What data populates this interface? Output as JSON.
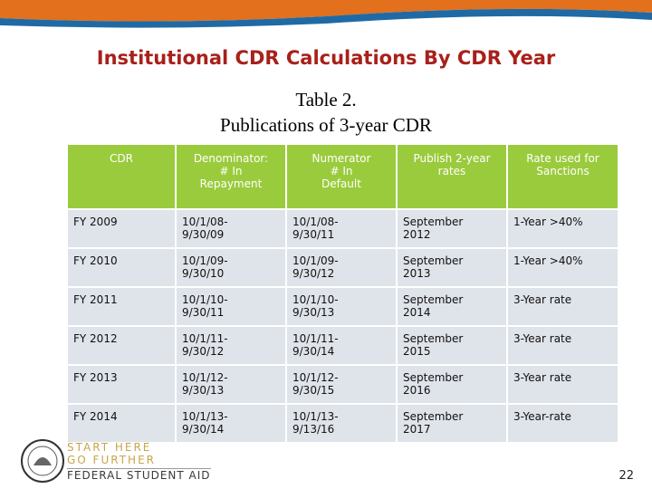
{
  "header": {
    "title": "Institutional CDR Calculations By CDR Year"
  },
  "table": {
    "caption": [
      "Table 2.",
      "Publications of 3-year CDR"
    ],
    "columns": [
      [
        "CDR"
      ],
      [
        "Denominator:",
        "# In",
        "Repayment"
      ],
      [
        "Numerator",
        "# In",
        "Default"
      ],
      [
        "Publish 2-year",
        "rates"
      ],
      [
        "Rate used for",
        "Sanctions"
      ]
    ],
    "rows": [
      [
        [
          "FY 2009"
        ],
        [
          "10/1/08-",
          "9/30/09"
        ],
        [
          "10/1/08-",
          "9/30/11"
        ],
        [
          "September",
          "2012"
        ],
        [
          "1-Year >40%"
        ]
      ],
      [
        [
          "FY 2010"
        ],
        [
          "10/1/09-",
          "9/30/10"
        ],
        [
          "10/1/09-",
          "9/30/12"
        ],
        [
          "September",
          "2013"
        ],
        [
          "1-Year >40%"
        ]
      ],
      [
        [
          "FY 2011"
        ],
        [
          "10/1/10-",
          "9/30/11"
        ],
        [
          "10/1/10-",
          "9/30/13"
        ],
        [
          "September",
          "2014"
        ],
        [
          "3-Year rate"
        ]
      ],
      [
        [
          "FY 2012"
        ],
        [
          "10/1/11-",
          "9/30/12"
        ],
        [
          "10/1/11-",
          "9/30/14"
        ],
        [
          "September",
          "2015"
        ],
        [
          "3-Year rate"
        ]
      ],
      [
        [
          "FY 2013"
        ],
        [
          "10/1/12-",
          "9/30/13"
        ],
        [
          "10/1/12-",
          "9/30/15"
        ],
        [
          "September",
          "2016"
        ],
        [
          "3-Year rate"
        ]
      ],
      [
        [
          "FY 2014"
        ],
        [
          "10/1/13-",
          "9/30/14"
        ],
        [
          "10/1/13-",
          "9/13/16"
        ],
        [
          "September",
          "2017"
        ],
        [
          "3-Year-rate"
        ]
      ]
    ]
  },
  "footer": {
    "logo": [
      "START HERE",
      "GO FURTHER",
      "FEDERAL STUDENT AID"
    ],
    "page_number": "22"
  }
}
